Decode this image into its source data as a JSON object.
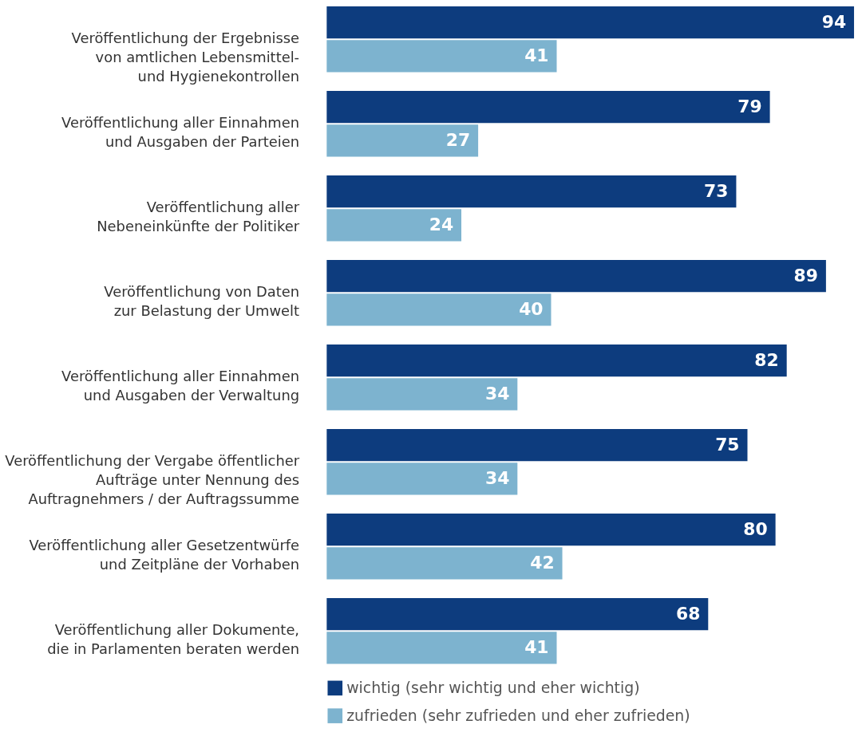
{
  "chart_data": {
    "type": "bar",
    "orientation": "horizontal",
    "categories": [
      "Veröffentlichung der Ergebnisse\nvon amtlichen Lebensmittel-\nund Hygienekontrollen",
      "Veröffentlichung aller Einnahmen\nund Ausgaben der Parteien",
      "Veröffentlichung aller\nNebeneinkünfte der Politiker",
      "Veröffentlichung von Daten\nzur Belastung der Umwelt",
      "Veröffentlichung aller Einnahmen\nund Ausgaben der Verwaltung",
      "Veröffentlichung der Vergabe öffentlicher\nAufträge unter Nennung des\nAuftragnehmers / der Auftragssumme",
      "Veröffentlichung aller Gesetzentwürfe\nund Zeitpläne der Vorhaben",
      "Veröffentlichung aller Dokumente,\ndie in Parlamenten beraten werden"
    ],
    "series": [
      {
        "name": "wichtig (sehr wichtig und eher wichtig)",
        "color": "#0d3c7e",
        "values": [
          94,
          79,
          73,
          89,
          82,
          75,
          80,
          68
        ]
      },
      {
        "name": "zufrieden (sehr zufrieden und eher zufrieden)",
        "color": "#7db3cf",
        "values": [
          41,
          27,
          24,
          40,
          34,
          34,
          42,
          41
        ]
      }
    ],
    "data_labels": true,
    "grid": false,
    "legend": "bottom"
  }
}
